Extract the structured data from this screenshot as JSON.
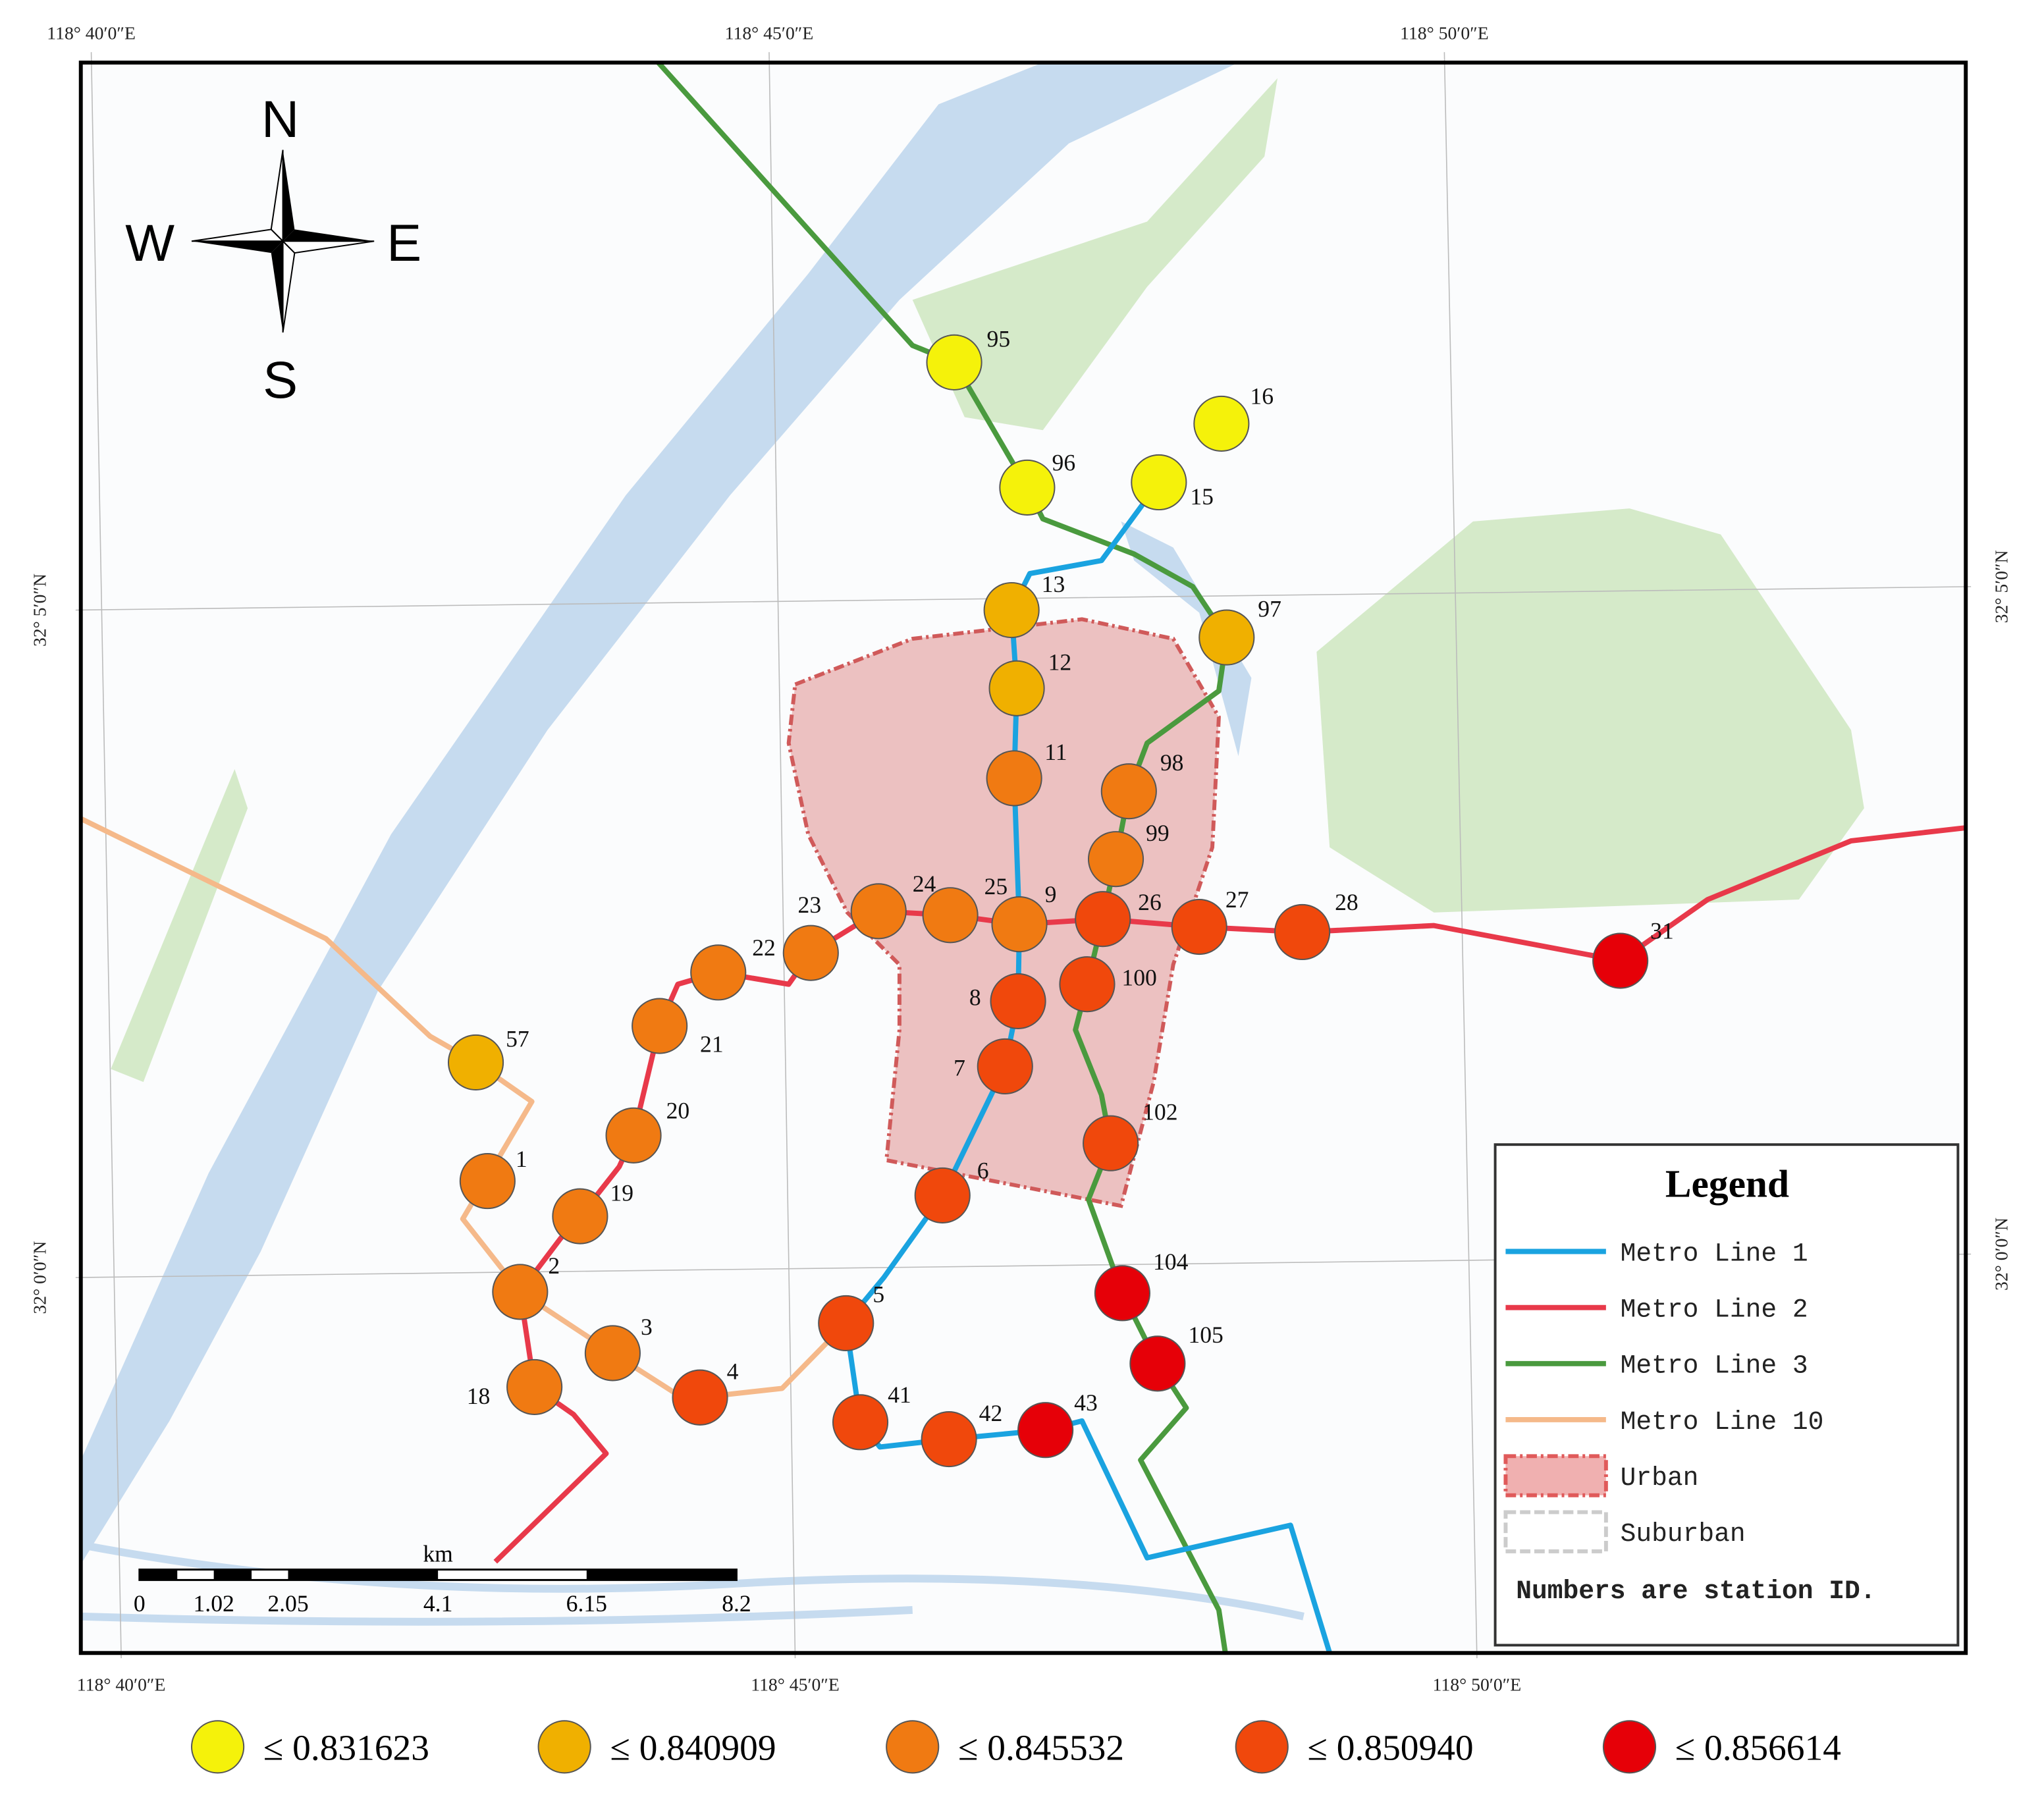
{
  "compass": {
    "north": "N",
    "south": "S",
    "west": "W",
    "east": "E"
  },
  "coordinates": {
    "top": [
      "118° 40′0″E",
      "118° 45′0″E",
      "118° 50′0″E"
    ],
    "bottom": [
      "118° 40′0″E",
      "118° 45′0″E",
      "118° 50′0″E"
    ],
    "left": [
      "32° 5′0″N",
      "32° 0′0″N"
    ],
    "right": [
      "32° 5′0″N",
      "32° 0′0″N"
    ]
  },
  "scale_bar": {
    "unit": "km",
    "labels": [
      "0",
      "1.02",
      "2.05",
      "4.1",
      "6.15",
      "8.2"
    ]
  },
  "legend": {
    "title": "Legend",
    "items": [
      "Metro Line 1",
      "Metro Line 2",
      "Metro Line 3",
      "Metro Line 10",
      "Urban",
      "Suburban"
    ],
    "note": "Numbers are station ID."
  },
  "classes": [
    {
      "label": "≤ 0.831623",
      "color": "#f5f20a"
    },
    {
      "label": "≤ 0.840909",
      "color": "#f0b000"
    },
    {
      "label": "≤ 0.845532",
      "color": "#f07a12"
    },
    {
      "label": "≤ 0.850940",
      "color": "#f0480c"
    },
    {
      "label": "≤ 0.856614",
      "color": "#e60008"
    }
  ],
  "stations": [
    {
      "id": "95",
      "class": 0
    },
    {
      "id": "16",
      "class": 0
    },
    {
      "id": "96",
      "class": 0
    },
    {
      "id": "15",
      "class": 0
    },
    {
      "id": "13",
      "class": 1
    },
    {
      "id": "12",
      "class": 1
    },
    {
      "id": "97",
      "class": 1
    },
    {
      "id": "57",
      "class": 1
    },
    {
      "id": "11",
      "class": 2
    },
    {
      "id": "98",
      "class": 2
    },
    {
      "id": "99",
      "class": 2
    },
    {
      "id": "24",
      "class": 2
    },
    {
      "id": "25",
      "class": 2
    },
    {
      "id": "9",
      "class": 2
    },
    {
      "id": "23",
      "class": 2
    },
    {
      "id": "22",
      "class": 2
    },
    {
      "id": "21",
      "class": 2
    },
    {
      "id": "20",
      "class": 2
    },
    {
      "id": "1",
      "class": 2
    },
    {
      "id": "19",
      "class": 2
    },
    {
      "id": "2",
      "class": 2
    },
    {
      "id": "3",
      "class": 2
    },
    {
      "id": "18",
      "class": 2
    },
    {
      "id": "26",
      "class": 3
    },
    {
      "id": "27",
      "class": 3
    },
    {
      "id": "28",
      "class": 3
    },
    {
      "id": "100",
      "class": 3
    },
    {
      "id": "8",
      "class": 3
    },
    {
      "id": "7",
      "class": 3
    },
    {
      "id": "102",
      "class": 3
    },
    {
      "id": "6",
      "class": 3
    },
    {
      "id": "5",
      "class": 3
    },
    {
      "id": "4",
      "class": 3
    },
    {
      "id": "41",
      "class": 3
    },
    {
      "id": "42",
      "class": 3
    },
    {
      "id": "31",
      "class": 4
    },
    {
      "id": "104",
      "class": 4
    },
    {
      "id": "105",
      "class": 4
    },
    {
      "id": "43",
      "class": 4
    }
  ]
}
